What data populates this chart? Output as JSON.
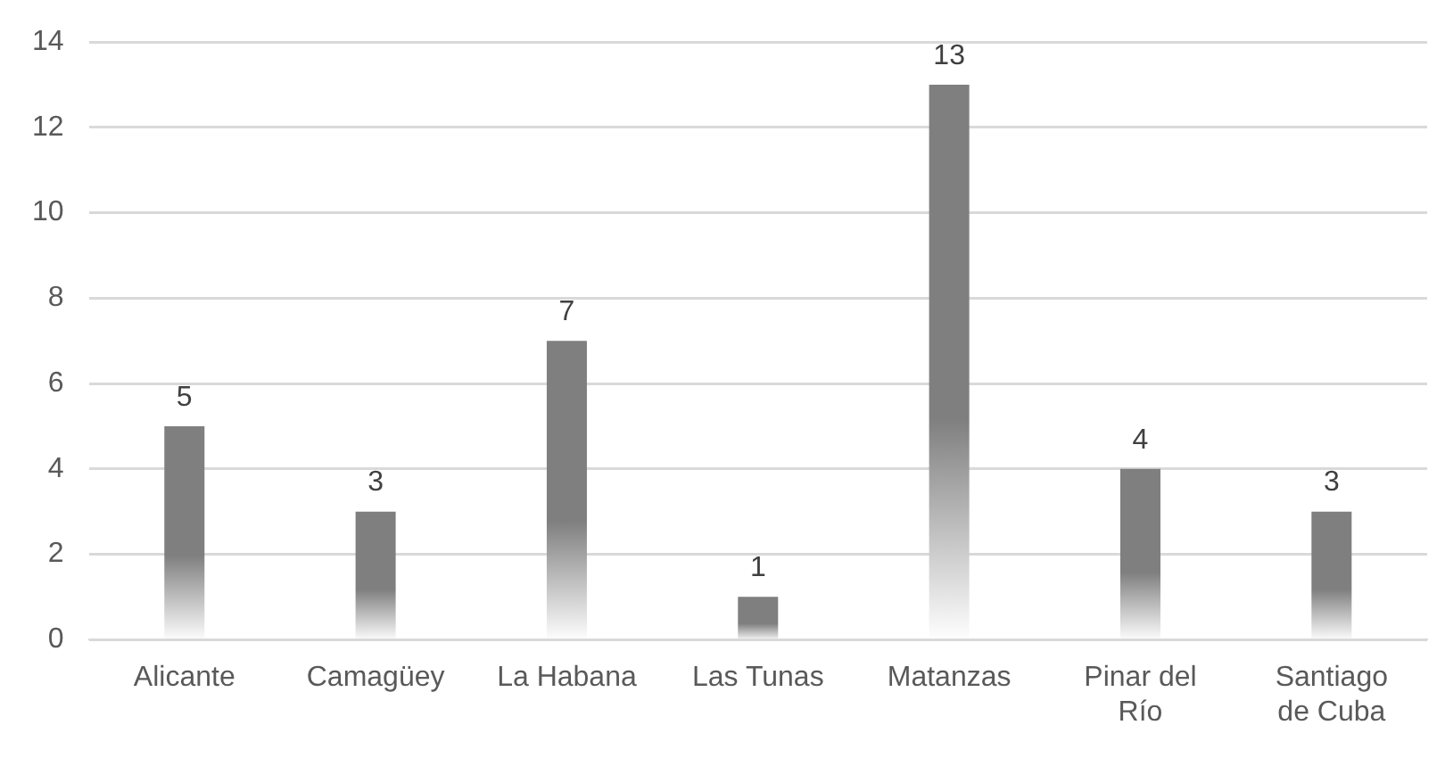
{
  "chart_data": {
    "type": "bar",
    "categories": [
      "Alicante",
      "Camagüey",
      "La Habana",
      "Las Tunas",
      "Matanzas",
      "Pinar del Río",
      "Santiago de Cuba"
    ],
    "values": [
      5,
      3,
      7,
      1,
      13,
      4,
      3
    ],
    "color": "#7f7f7f",
    "ylim": [
      0,
      14
    ],
    "yticks": [
      0,
      2,
      4,
      6,
      8,
      10,
      12,
      14
    ],
    "grid": "y",
    "data_labels": true
  }
}
